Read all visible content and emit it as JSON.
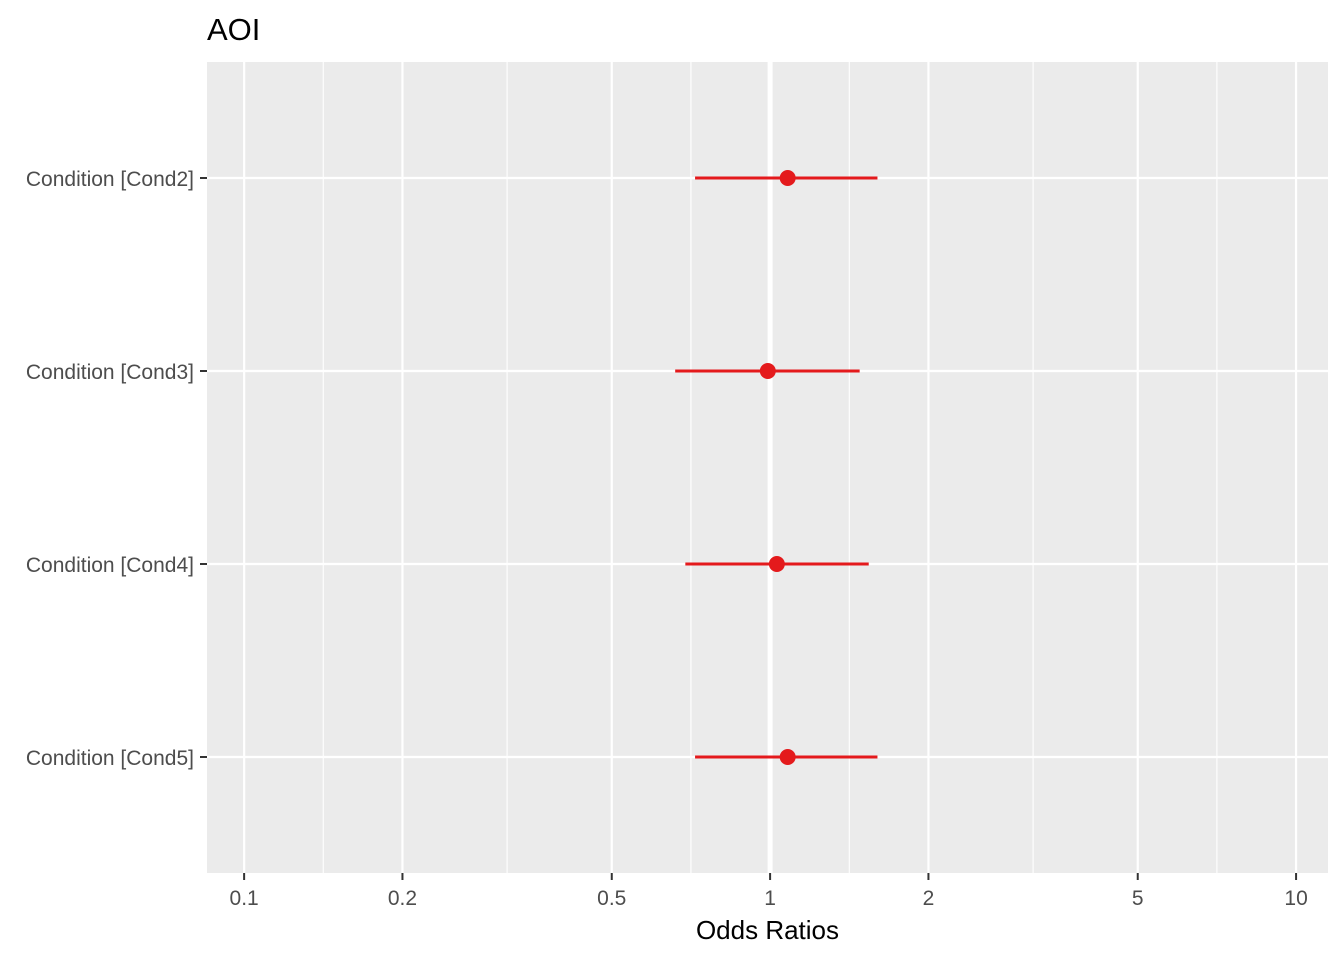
{
  "chart_data": {
    "type": "forest",
    "title": "AOI",
    "xlabel": "Odds Ratios",
    "ylabel": "",
    "x_scale": "log10",
    "xlim": [
      0.085,
      11.5
    ],
    "x_ticks": [
      0.1,
      0.2,
      0.5,
      1,
      2,
      5,
      10
    ],
    "x_tick_labels": [
      "0.1",
      "0.2",
      "0.5",
      "1",
      "2",
      "5",
      "10"
    ],
    "x_minor_gridlines": [
      0.1414,
      0.3162,
      0.7071,
      1.4142,
      3.1623,
      7.0711
    ],
    "reference_line": 1,
    "grid": true,
    "legend": "none",
    "terms": [
      "Condition [Cond2]",
      "Condition [Cond3]",
      "Condition [Cond4]",
      "Condition [Cond5]"
    ],
    "estimates": [
      1.08,
      0.99,
      1.03,
      1.08
    ],
    "conf_low": [
      0.72,
      0.66,
      0.69,
      0.72
    ],
    "conf_high": [
      1.6,
      1.48,
      1.54,
      1.6
    ],
    "colors": {
      "panel": "#EBEBEB",
      "grid": "#FFFFFF",
      "point": "#E41A1C",
      "text_axis": "#4D4D4D",
      "text_title": "#000000"
    }
  }
}
